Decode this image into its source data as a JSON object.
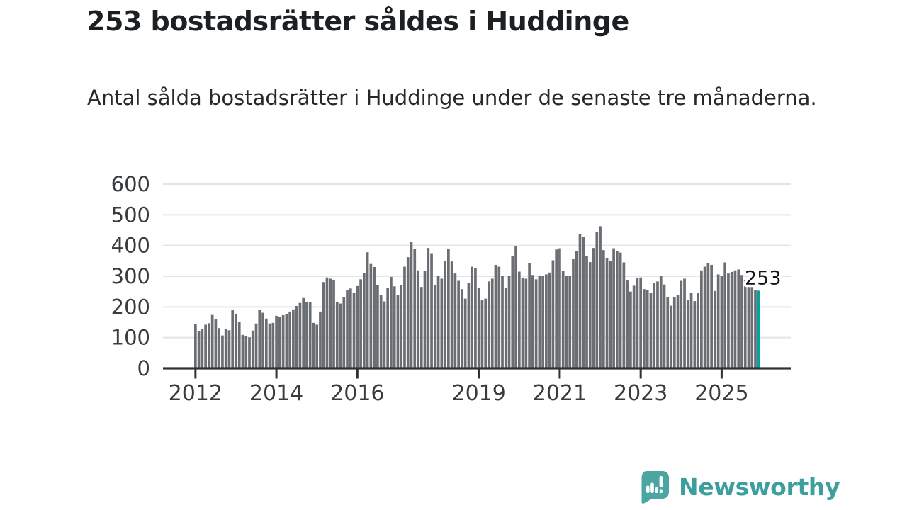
{
  "title": "253 bostadsrätter såldes i Huddinge",
  "subtitle": "Antal sålda bostadsrätter i Huddinge under de senaste tre månaderna.",
  "annotation": {
    "value_label": "253"
  },
  "branding": {
    "name": "Newsworthy",
    "logo_icon": "bar-chart-speech-bubble-icon"
  },
  "colors": {
    "bar": "#6a6d72",
    "highlight": "#00a4a0",
    "grid": "#e4e4e4",
    "axis": "#2f3133",
    "axis_text": "#393c3e",
    "annotation_text": "#141414",
    "logo_bg": "#4ba5a3",
    "brand_text": "#3d9f9d"
  },
  "chart_data": {
    "type": "bar",
    "title": "253 bostadsrätter såldes i Huddinge",
    "subtitle": "Antal sålda bostadsrätter i Huddinge under de senaste tre månaderna.",
    "x_unit": "month",
    "x_start_year": 2012,
    "ylim": [
      0,
      600
    ],
    "y_ticks": [
      0,
      100,
      200,
      300,
      400,
      500,
      600
    ],
    "grid": true,
    "x_tick_labels": [
      "2012",
      "2014",
      "2016",
      "2019",
      "2021",
      "2023",
      "2025"
    ],
    "x_tick_month_indices": [
      0,
      24,
      48,
      84,
      108,
      132,
      156
    ],
    "highlight_last_bar": true,
    "last_value_label": "253",
    "values": [
      145,
      120,
      128,
      142,
      147,
      174,
      160,
      131,
      107,
      127,
      124,
      189,
      178,
      150,
      109,
      104,
      101,
      123,
      146,
      190,
      181,
      162,
      146,
      148,
      171,
      168,
      173,
      177,
      185,
      192,
      203,
      213,
      229,
      217,
      215,
      148,
      142,
      185,
      281,
      296,
      292,
      288,
      217,
      211,
      232,
      254,
      260,
      246,
      268,
      290,
      310,
      378,
      340,
      330,
      270,
      240,
      218,
      262,
      298,
      267,
      238,
      271,
      331,
      362,
      413,
      388,
      319,
      265,
      317,
      392,
      375,
      271,
      300,
      292,
      350,
      388,
      348,
      309,
      285,
      258,
      227,
      277,
      331,
      327,
      262,
      223,
      227,
      283,
      292,
      337,
      331,
      302,
      262,
      302,
      365,
      398,
      315,
      294,
      292,
      342,
      304,
      290,
      302,
      300,
      306,
      312,
      352,
      387,
      391,
      317,
      300,
      302,
      356,
      382,
      438,
      428,
      365,
      346,
      392,
      445,
      463,
      385,
      360,
      350,
      391,
      381,
      377,
      345,
      286,
      250,
      269,
      294,
      296,
      258,
      255,
      245,
      278,
      283,
      302,
      273,
      231,
      204,
      231,
      240,
      285,
      292,
      223,
      246,
      219,
      245,
      319,
      331,
      342,
      337,
      252,
      306,
      302,
      345,
      309,
      314,
      319,
      322,
      304,
      286,
      277,
      275,
      254,
      253
    ]
  }
}
